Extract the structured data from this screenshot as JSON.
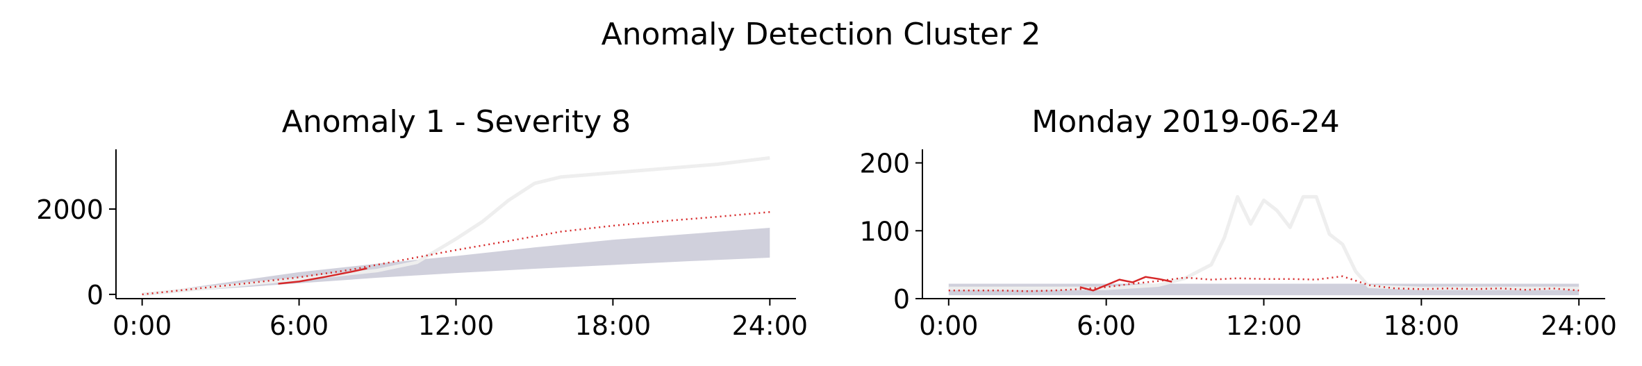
{
  "figure": {
    "title": "Anomaly Detection Cluster 2"
  },
  "chart_data": [
    {
      "type": "line",
      "title": "Anomaly 1 - Severity 8",
      "xlabel": "",
      "ylabel": "",
      "xlim": [
        -1,
        25
      ],
      "ylim": [
        -100,
        3400
      ],
      "xticks": [
        0,
        6,
        12,
        18,
        24
      ],
      "xticklabels": [
        "0:00",
        "6:00",
        "12:00",
        "18:00",
        "24:00"
      ],
      "yticks": [
        0,
        2000
      ],
      "yticklabels": [
        "0",
        "2000"
      ],
      "grid": false,
      "colors": {
        "background_band": "#c8c8d6",
        "outlier": "#eeeeee",
        "actual": "#d62728",
        "expected": "#d62728"
      },
      "series": [
        {
          "role": "background-band",
          "x": [
            0,
            3,
            6,
            9,
            12,
            15,
            18,
            21,
            24
          ],
          "low": [
            0,
            130,
            260,
            390,
            500,
            600,
            690,
            780,
            860
          ],
          "high": [
            0,
            260,
            520,
            720,
            900,
            1100,
            1280,
            1420,
            1560
          ]
        },
        {
          "role": "outlier",
          "x": [
            0,
            3,
            6,
            9,
            10.5,
            12,
            13,
            14,
            15,
            16,
            18,
            20,
            22,
            24
          ],
          "y": [
            0,
            180,
            360,
            560,
            750,
            1300,
            1700,
            2200,
            2600,
            2750,
            2850,
            2950,
            3050,
            3200
          ]
        },
        {
          "role": "expected",
          "x": [
            0,
            2,
            4,
            6,
            8,
            10,
            12,
            14,
            16,
            18,
            20,
            22,
            24
          ],
          "y": [
            0,
            130,
            260,
            400,
            580,
            810,
            1040,
            1250,
            1470,
            1610,
            1720,
            1820,
            1930
          ]
        },
        {
          "role": "actual",
          "x": [
            5.2,
            6,
            7,
            8,
            8.6
          ],
          "y": [
            250,
            300,
            410,
            530,
            610
          ]
        }
      ]
    },
    {
      "type": "line",
      "title": "Monday 2019-06-24",
      "xlabel": "",
      "ylabel": "",
      "xlim": [
        -1,
        25
      ],
      "ylim": [
        0,
        220
      ],
      "xticks": [
        0,
        6,
        12,
        18,
        24
      ],
      "xticklabels": [
        "0:00",
        "6:00",
        "12:00",
        "18:00",
        "24:00"
      ],
      "yticks": [
        0,
        100,
        200
      ],
      "yticklabels": [
        "0",
        "100",
        "200"
      ],
      "grid": false,
      "colors": {
        "background_band": "#c8c8d6",
        "outlier": "#eeeeee",
        "actual": "#d62728",
        "expected": "#d62728"
      },
      "series": [
        {
          "role": "background-band",
          "x": [
            0,
            24
          ],
          "low": [
            5,
            5
          ],
          "high": [
            22,
            22
          ]
        },
        {
          "role": "outlier",
          "x": [
            0,
            6,
            8,
            9,
            10,
            10.5,
            11,
            11.5,
            12,
            12.5,
            13,
            13.5,
            14,
            14.5,
            15,
            15.5,
            16,
            18,
            24
          ],
          "y": [
            15,
            15,
            20,
            30,
            50,
            90,
            150,
            110,
            145,
            130,
            105,
            150,
            150,
            95,
            80,
            40,
            18,
            15,
            15
          ]
        },
        {
          "role": "expected",
          "x": [
            0,
            1,
            2,
            3,
            4,
            5,
            6,
            7,
            8,
            9,
            10,
            11,
            12,
            13,
            14,
            15,
            16,
            17,
            18,
            19,
            20,
            21,
            22,
            23,
            24
          ],
          "y": [
            12,
            12,
            12,
            11,
            12,
            14,
            17,
            22,
            26,
            31,
            28,
            30,
            29,
            29,
            28,
            33,
            20,
            15,
            14,
            15,
            14,
            15,
            13,
            15,
            12
          ]
        },
        {
          "role": "actual",
          "x": [
            5,
            5.5,
            6,
            6.5,
            7,
            7.5,
            8,
            8.5
          ],
          "y": [
            17,
            12,
            20,
            28,
            24,
            32,
            29,
            25
          ]
        }
      ]
    }
  ]
}
